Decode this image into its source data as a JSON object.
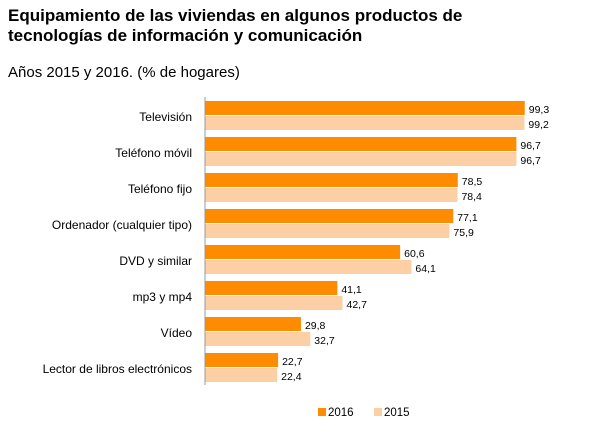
{
  "header": {
    "title_line1": "Equipamiento de las viviendas en algunos productos de",
    "title_line2": "tecnologías de información y comunicación",
    "subtitle": "Años 2015 y 2016. (% de hogares)"
  },
  "colors": {
    "series_2016": "#ff8c00",
    "series_2015": "#fcd0a4",
    "axis": "#9a9a9a"
  },
  "chart_data": {
    "type": "bar",
    "orientation": "horizontal",
    "title": "Equipamiento de las viviendas en algunos productos de tecnologías de información y comunicación",
    "subtitle": "Años 2015 y 2016. (% de hogares)",
    "categories": [
      "Televisión",
      "Teléfono móvil",
      "Teléfono fijo",
      "Ordenador (cualquier tipo)",
      "DVD y similar",
      "mp3 y mp4",
      "Vídeo",
      "Lector de libros electrónicos"
    ],
    "series": [
      {
        "name": "2016",
        "values": [
          99.3,
          96.7,
          78.5,
          77.1,
          60.6,
          41.1,
          29.8,
          22.7
        ]
      },
      {
        "name": "2015",
        "values": [
          99.2,
          96.7,
          78.4,
          75.9,
          64.1,
          42.7,
          32.7,
          22.4
        ]
      }
    ],
    "value_labels": {
      "2016": [
        "99,3",
        "96,7",
        "78,5",
        "77,1",
        "60,6",
        "41,1",
        "29,8",
        "22,7"
      ],
      "2015": [
        "99,2",
        "96,7",
        "78,4",
        "75,9",
        "64,1",
        "42,7",
        "32,7",
        "22,4"
      ]
    },
    "xlim": [
      0,
      100
    ],
    "grid": false,
    "legend_position": "bottom"
  }
}
